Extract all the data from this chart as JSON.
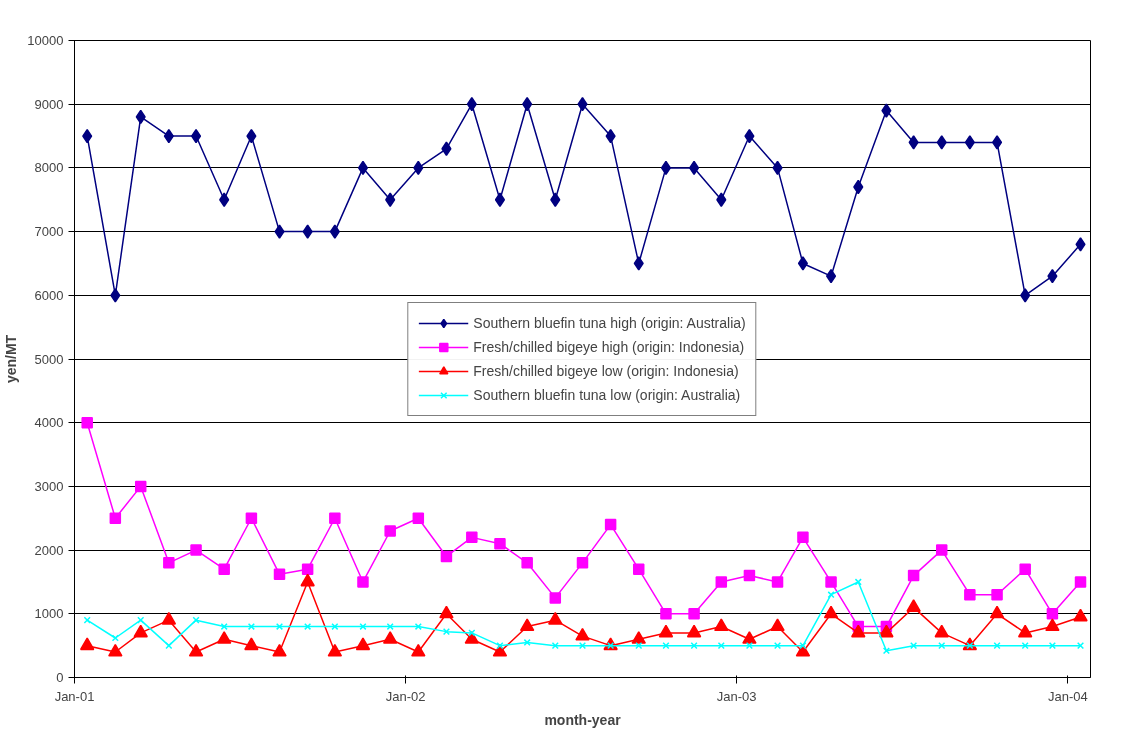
{
  "chart_data": {
    "type": "line",
    "xlabel": "month-year",
    "ylabel": "yen/MT",
    "x": [
      "2001-01-15",
      "2001-02-15",
      "2001-03-15",
      "2001-04-15",
      "2001-05-15",
      "2001-06-15",
      "2001-07-15",
      "2001-08-15",
      "2001-09-15",
      "2001-10-15",
      "2001-11-15",
      "2001-12-15",
      "2002-01-15",
      "2002-02-15",
      "2002-03-15",
      "2002-04-15",
      "2002-05-15",
      "2002-06-15",
      "2002-07-15",
      "2002-08-15",
      "2002-09-15",
      "2002-10-15",
      "2002-11-15",
      "2002-12-15",
      "2003-01-15",
      "2003-02-15",
      "2003-03-15",
      "2003-04-15",
      "2003-05-15",
      "2003-06-15",
      "2003-07-15",
      "2003-08-15",
      "2003-09-15",
      "2003-10-15",
      "2003-11-15",
      "2003-12-15",
      "2004-01-15"
    ],
    "xlim": [
      "2001-01-01",
      "2004-01-26"
    ],
    "xticks": [
      {
        "value": "2001-01-01",
        "label": "Jan-01"
      },
      {
        "value": "2002-01-01",
        "label": "Jan-02"
      },
      {
        "value": "2003-01-01",
        "label": "Jan-03"
      },
      {
        "value": "2004-01-01",
        "label": "Jan-04"
      }
    ],
    "ylim": [
      0,
      10000
    ],
    "yticks": [
      0,
      1000,
      2000,
      3000,
      4000,
      5000,
      6000,
      7000,
      8000,
      9000,
      10000
    ],
    "grid": "y",
    "legend": "center",
    "series": [
      {
        "name": "Southern bluefin tuna high (origin: Australia)",
        "color": "#000080",
        "marker": "diamond",
        "values": [
          8500,
          6000,
          8800,
          8500,
          8500,
          7500,
          8500,
          7000,
          7000,
          7000,
          8000,
          7500,
          8000,
          8300,
          9000,
          7500,
          9000,
          7500,
          9000,
          8500,
          6500,
          8000,
          8000,
          7500,
          8500,
          8000,
          6500,
          6300,
          7700,
          8900,
          8400,
          8400,
          8400,
          8400,
          6000,
          6300,
          6800
        ]
      },
      {
        "name": "Fresh/chilled bigeye high (origin: Indonesia)",
        "color": "#ff00ff",
        "marker": "square",
        "values": [
          4000,
          2500,
          3000,
          1800,
          2000,
          1700,
          2500,
          1620,
          1700,
          2500,
          1500,
          2300,
          2500,
          1900,
          2200,
          2100,
          1800,
          1250,
          1800,
          2400,
          1700,
          1000,
          1000,
          1500,
          1600,
          1500,
          2200,
          1500,
          800,
          800,
          1600,
          2000,
          1300,
          1300,
          1700,
          1000,
          1500
        ]
      },
      {
        "name": "Fresh/chilled bigeye low (origin: Indonesia)",
        "color": "#ff0000",
        "marker": "triangle",
        "values": [
          500,
          400,
          700,
          900,
          400,
          600,
          500,
          400,
          1500,
          400,
          500,
          600,
          400,
          1000,
          600,
          400,
          800,
          900,
          650,
          500,
          600,
          700,
          700,
          800,
          600,
          800,
          400,
          1000,
          700,
          700,
          1100,
          700,
          500,
          1000,
          700,
          800,
          950
        ]
      },
      {
        "name": "Southern bluefin tuna low (origin: Australia)",
        "color": "#00ffff",
        "marker": "cross",
        "values": [
          900,
          620,
          900,
          500,
          900,
          800,
          800,
          800,
          800,
          800,
          800,
          800,
          800,
          720,
          700,
          500,
          550,
          500,
          500,
          500,
          500,
          500,
          500,
          500,
          500,
          500,
          500,
          1300,
          1500,
          420,
          500,
          500,
          500,
          500,
          500,
          500,
          500
        ]
      }
    ]
  }
}
